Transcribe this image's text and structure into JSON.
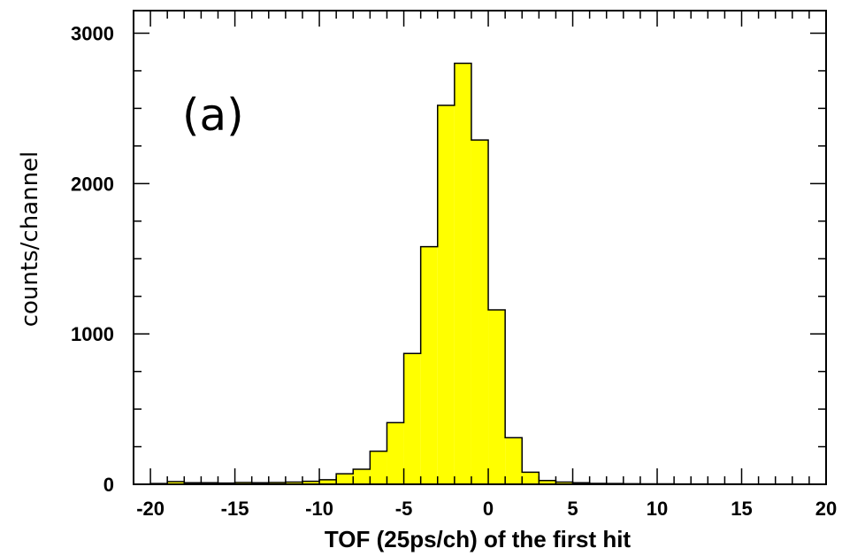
{
  "chart_data": {
    "type": "bar",
    "title": "",
    "annotation": "(a)",
    "xlabel": "TOF (25ps/ch) of the first hit",
    "ylabel": "counts/channel",
    "xlim": [
      -21,
      20
    ],
    "ylim": [
      0,
      3150
    ],
    "x_ticks": [
      -20,
      -15,
      -10,
      -5,
      0,
      5,
      10,
      15,
      20
    ],
    "x_tick_labels": [
      "-20",
      "-15",
      "-10",
      "-5",
      "0",
      "5",
      "10",
      "15",
      "20"
    ],
    "y_ticks": [
      0,
      1000,
      2000,
      3000
    ],
    "y_tick_labels": [
      "0",
      "1000",
      "2000",
      "3000"
    ],
    "bin_width": 1,
    "bin_lower_edges": [
      -20,
      -19,
      -18,
      -17,
      -16,
      -15,
      -14,
      -13,
      -12,
      -11,
      -10,
      -9,
      -8,
      -7,
      -6,
      -5,
      -4,
      -3,
      -2,
      -1,
      0,
      1,
      2,
      3,
      4,
      5,
      6,
      7,
      8,
      9,
      10,
      11,
      12,
      13,
      14,
      15,
      16,
      17,
      18,
      19
    ],
    "values": [
      5,
      18,
      10,
      10,
      8,
      12,
      10,
      12,
      15,
      20,
      30,
      70,
      100,
      220,
      410,
      870,
      1580,
      2520,
      2800,
      2290,
      1160,
      310,
      80,
      25,
      15,
      10,
      6,
      5,
      4,
      3,
      3,
      2,
      2,
      2,
      2,
      1,
      1,
      1,
      1,
      1
    ],
    "fill_color": "#ffff00",
    "line_color": "#000000",
    "grid": false
  }
}
